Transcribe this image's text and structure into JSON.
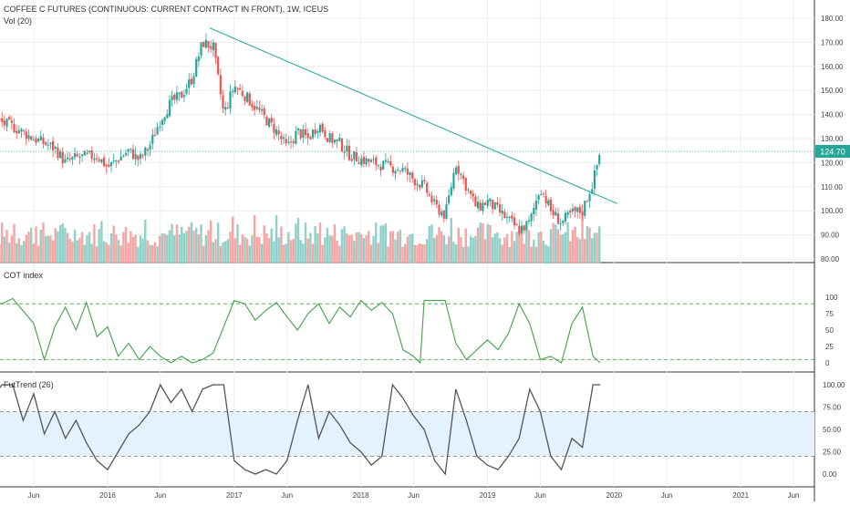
{
  "header": {
    "symbol_line": "COFFEE C FUTURES (CONTINUOUS: CURRENT CONTRACT IN FRONT), 1W, ICEUS",
    "volume_label": "Vol (20)"
  },
  "colors": {
    "up": "#26a69a",
    "down": "#ef5350",
    "vol_up": "#8fd1c9",
    "vol_down": "#f4a6a4",
    "trendline": "#26a69a",
    "cot_line": "#43a047",
    "futtrend_line": "#555555",
    "band_fill": "#e3f2fd",
    "last_price_bg": "#26a69a"
  },
  "chart_data": [
    {
      "type": "candlestick",
      "name_label": "",
      "ylim": [
        80,
        180
      ],
      "y_ticks": [
        "180.00",
        "170.00",
        "160.00",
        "150.00",
        "140.00",
        "130.00",
        "120.00",
        "110.00",
        "100.00",
        "90.00",
        "80.00"
      ],
      "last_price": "124.70",
      "x_ticks": [
        "Jun",
        "2016",
        "Jun",
        "2017",
        "Jun",
        "2018",
        "Jun",
        "2019",
        "Jun",
        "2020",
        "Jun",
        "2021",
        "Jun"
      ],
      "x_domain": [
        "2015-01",
        "2021-10"
      ],
      "x_ticks_at": [
        "2015-06",
        "2016-01",
        "2016-06",
        "2017-01",
        "2017-06",
        "2018-01",
        "2018-06",
        "2019-01",
        "2019-06",
        "2020-01",
        "2020-06",
        "2021-01",
        "2021-06"
      ],
      "close_path_anchors": [
        {
          "x": "2014-12",
          "y": 140
        },
        {
          "x": "2015-02",
          "y": 138
        },
        {
          "x": "2015-04",
          "y": 135
        },
        {
          "x": "2015-06",
          "y": 130
        },
        {
          "x": "2015-08",
          "y": 126
        },
        {
          "x": "2015-09",
          "y": 120
        },
        {
          "x": "2015-10",
          "y": 122
        },
        {
          "x": "2015-12",
          "y": 123
        },
        {
          "x": "2016-01",
          "y": 118
        },
        {
          "x": "2016-03",
          "y": 125
        },
        {
          "x": "2016-04",
          "y": 121
        },
        {
          "x": "2016-05",
          "y": 127
        },
        {
          "x": "2016-06",
          "y": 138
        },
        {
          "x": "2016-07",
          "y": 145
        },
        {
          "x": "2016-08",
          "y": 148
        },
        {
          "x": "2016-09",
          "y": 155
        },
        {
          "x": "2016-10",
          "y": 170
        },
        {
          "x": "2016-11",
          "y": 168
        },
        {
          "x": "2016-12",
          "y": 140
        },
        {
          "x": "2017-01",
          "y": 152
        },
        {
          "x": "2017-02",
          "y": 148
        },
        {
          "x": "2017-04",
          "y": 138
        },
        {
          "x": "2017-05",
          "y": 133
        },
        {
          "x": "2017-06",
          "y": 126
        },
        {
          "x": "2017-07",
          "y": 133
        },
        {
          "x": "2017-08",
          "y": 130
        },
        {
          "x": "2017-09",
          "y": 136
        },
        {
          "x": "2017-10",
          "y": 130
        },
        {
          "x": "2017-11",
          "y": 128
        },
        {
          "x": "2017-12",
          "y": 123
        },
        {
          "x": "2018-02",
          "y": 120
        },
        {
          "x": "2018-04",
          "y": 118
        },
        {
          "x": "2018-05",
          "y": 117
        },
        {
          "x": "2018-06",
          "y": 113
        },
        {
          "x": "2018-07",
          "y": 110
        },
        {
          "x": "2018-08",
          "y": 102
        },
        {
          "x": "2018-09",
          "y": 98
        },
        {
          "x": "2018-10",
          "y": 120
        },
        {
          "x": "2018-11",
          "y": 110
        },
        {
          "x": "2018-12",
          "y": 101
        },
        {
          "x": "2019-01",
          "y": 104
        },
        {
          "x": "2019-03",
          "y": 96
        },
        {
          "x": "2019-04",
          "y": 92
        },
        {
          "x": "2019-05",
          "y": 95
        },
        {
          "x": "2019-06",
          "y": 110
        },
        {
          "x": "2019-07",
          "y": 100
        },
        {
          "x": "2019-08",
          "y": 95
        },
        {
          "x": "2019-09",
          "y": 99
        },
        {
          "x": "2019-10",
          "y": 100
        },
        {
          "x": "2019-11",
          "y": 112
        },
        {
          "x": "2019-11-22",
          "y": 124.7
        }
      ],
      "trendline": [
        {
          "x": "2016-10-21",
          "y": 176
        },
        {
          "x": "2020-01-10",
          "y": 103
        }
      ]
    },
    {
      "type": "line",
      "indicator_label": "COT index",
      "ylim": [
        0,
        100
      ],
      "y_ticks": [
        "100",
        "75",
        "50",
        "25",
        "0"
      ],
      "reference_lines": [
        90,
        5
      ],
      "anchors": [
        {
          "x": "2014-12",
          "y": 100
        },
        {
          "x": "2015-03",
          "y": 90
        },
        {
          "x": "2015-04",
          "y": 98
        },
        {
          "x": "2015-06",
          "y": 60
        },
        {
          "x": "2015-07",
          "y": 5
        },
        {
          "x": "2015-08",
          "y": 55
        },
        {
          "x": "2015-09",
          "y": 85
        },
        {
          "x": "2015-10",
          "y": 50
        },
        {
          "x": "2015-11",
          "y": 92
        },
        {
          "x": "2015-12",
          "y": 40
        },
        {
          "x": "2016-01",
          "y": 55
        },
        {
          "x": "2016-02",
          "y": 10
        },
        {
          "x": "2016-03",
          "y": 30
        },
        {
          "x": "2016-04",
          "y": 5
        },
        {
          "x": "2016-05",
          "y": 25
        },
        {
          "x": "2016-06",
          "y": 10
        },
        {
          "x": "2016-07",
          "y": 0
        },
        {
          "x": "2016-08",
          "y": 10
        },
        {
          "x": "2016-09",
          "y": 0
        },
        {
          "x": "2016-10",
          "y": 5
        },
        {
          "x": "2016-11",
          "y": 15
        },
        {
          "x": "2016-12",
          "y": 55
        },
        {
          "x": "2017-01",
          "y": 95
        },
        {
          "x": "2017-02",
          "y": 90
        },
        {
          "x": "2017-03",
          "y": 65
        },
        {
          "x": "2017-04",
          "y": 80
        },
        {
          "x": "2017-05",
          "y": 92
        },
        {
          "x": "2017-06",
          "y": 70
        },
        {
          "x": "2017-07",
          "y": 50
        },
        {
          "x": "2017-08",
          "y": 75
        },
        {
          "x": "2017-09",
          "y": 90
        },
        {
          "x": "2017-10",
          "y": 60
        },
        {
          "x": "2017-11",
          "y": 85
        },
        {
          "x": "2017-12",
          "y": 70
        },
        {
          "x": "2018-01",
          "y": 95
        },
        {
          "x": "2018-02",
          "y": 80
        },
        {
          "x": "2018-03",
          "y": 92
        },
        {
          "x": "2018-04",
          "y": 75
        },
        {
          "x": "2018-05",
          "y": 20
        },
        {
          "x": "2018-06",
          "y": 10
        },
        {
          "x": "2018-06-20",
          "y": 0
        },
        {
          "x": "2018-07",
          "y": 95
        },
        {
          "x": "2018-09",
          "y": 95
        },
        {
          "x": "2018-10",
          "y": 30
        },
        {
          "x": "2018-11",
          "y": 5
        },
        {
          "x": "2018-12",
          "y": 20
        },
        {
          "x": "2019-01",
          "y": 35
        },
        {
          "x": "2019-02",
          "y": 20
        },
        {
          "x": "2019-03",
          "y": 45
        },
        {
          "x": "2019-04",
          "y": 90
        },
        {
          "x": "2019-05",
          "y": 60
        },
        {
          "x": "2019-06",
          "y": 5
        },
        {
          "x": "2019-07",
          "y": 10
        },
        {
          "x": "2019-08",
          "y": 0
        },
        {
          "x": "2019-09",
          "y": 60
        },
        {
          "x": "2019-10",
          "y": 85
        },
        {
          "x": "2019-11",
          "y": 10
        },
        {
          "x": "2019-11-22",
          "y": 0
        }
      ]
    },
    {
      "type": "line",
      "indicator_label": "FutTrend (26)",
      "ylim": [
        0,
        100
      ],
      "y_ticks": [
        "100.00",
        "75.00",
        "50.00",
        "25.00",
        "0.00"
      ],
      "band": [
        20,
        70
      ],
      "anchors": [
        {
          "x": "2014-12",
          "y": 10
        },
        {
          "x": "2015-01",
          "y": 25
        },
        {
          "x": "2015-02",
          "y": 85
        },
        {
          "x": "2015-03",
          "y": 100
        },
        {
          "x": "2015-04",
          "y": 100
        },
        {
          "x": "2015-05",
          "y": 60
        },
        {
          "x": "2015-06",
          "y": 90
        },
        {
          "x": "2015-07",
          "y": 45
        },
        {
          "x": "2015-08",
          "y": 70
        },
        {
          "x": "2015-09",
          "y": 40
        },
        {
          "x": "2015-10",
          "y": 60
        },
        {
          "x": "2015-11",
          "y": 35
        },
        {
          "x": "2015-12",
          "y": 15
        },
        {
          "x": "2016-01",
          "y": 5
        },
        {
          "x": "2016-02",
          "y": 25
        },
        {
          "x": "2016-03",
          "y": 45
        },
        {
          "x": "2016-04",
          "y": 55
        },
        {
          "x": "2016-05",
          "y": 70
        },
        {
          "x": "2016-06",
          "y": 100
        },
        {
          "x": "2016-07",
          "y": 80
        },
        {
          "x": "2016-08",
          "y": 95
        },
        {
          "x": "2016-09",
          "y": 70
        },
        {
          "x": "2016-10",
          "y": 95
        },
        {
          "x": "2016-11",
          "y": 100
        },
        {
          "x": "2016-12",
          "y": 100
        },
        {
          "x": "2017-01",
          "y": 15
        },
        {
          "x": "2017-02",
          "y": 5
        },
        {
          "x": "2017-03",
          "y": 0
        },
        {
          "x": "2017-04",
          "y": 5
        },
        {
          "x": "2017-05",
          "y": 0
        },
        {
          "x": "2017-06",
          "y": 15
        },
        {
          "x": "2017-07",
          "y": 60
        },
        {
          "x": "2017-08",
          "y": 100
        },
        {
          "x": "2017-09",
          "y": 40
        },
        {
          "x": "2017-10",
          "y": 70
        },
        {
          "x": "2017-11",
          "y": 55
        },
        {
          "x": "2017-12",
          "y": 35
        },
        {
          "x": "2018-01",
          "y": 25
        },
        {
          "x": "2018-02",
          "y": 10
        },
        {
          "x": "2018-03",
          "y": 20
        },
        {
          "x": "2018-04",
          "y": 100
        },
        {
          "x": "2018-05",
          "y": 85
        },
        {
          "x": "2018-06",
          "y": 65
        },
        {
          "x": "2018-07",
          "y": 50
        },
        {
          "x": "2018-08",
          "y": 15
        },
        {
          "x": "2018-09",
          "y": 0
        },
        {
          "x": "2018-10",
          "y": 95
        },
        {
          "x": "2018-11",
          "y": 60
        },
        {
          "x": "2018-12",
          "y": 20
        },
        {
          "x": "2019-01",
          "y": 10
        },
        {
          "x": "2019-02",
          "y": 5
        },
        {
          "x": "2019-03",
          "y": 20
        },
        {
          "x": "2019-04",
          "y": 40
        },
        {
          "x": "2019-05",
          "y": 95
        },
        {
          "x": "2019-06",
          "y": 70
        },
        {
          "x": "2019-07",
          "y": 20
        },
        {
          "x": "2019-08",
          "y": 5
        },
        {
          "x": "2019-09",
          "y": 40
        },
        {
          "x": "2019-10",
          "y": 30
        },
        {
          "x": "2019-11",
          "y": 100
        },
        {
          "x": "2019-11-22",
          "y": 100
        }
      ]
    }
  ]
}
